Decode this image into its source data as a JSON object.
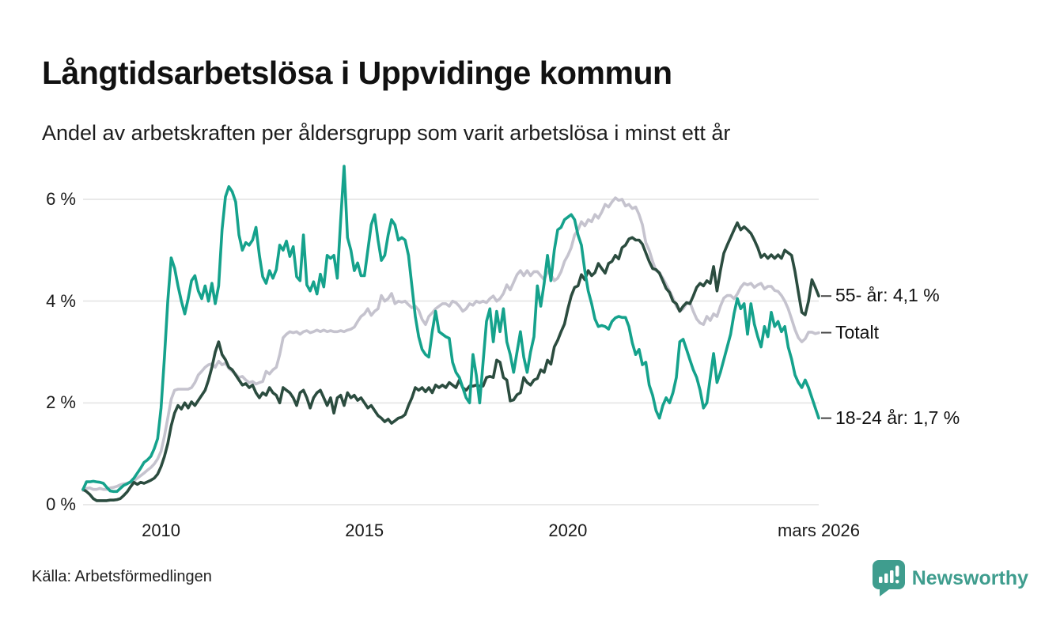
{
  "header": {
    "title": "Långtidsarbetslösa i Uppvidinge kommun",
    "subtitle": "Andel av arbetskraften per åldersgrupp som varit arbetslösa i minst ett år"
  },
  "footer": {
    "source": "Källa: Arbetsförmedlingen",
    "logo_text": "Newsworthy"
  },
  "colors": {
    "teal_line": "#15a28c",
    "dark_green_line": "#2b4c3f",
    "gray_line": "#c5c3ce",
    "grid": "#e9e9e9",
    "end_dash": "#444444",
    "logo_teal": "#3f9d8e",
    "background": "#ffffff"
  },
  "chart_data": {
    "type": "line",
    "title": "Långtidsarbetslösa i Uppvidinge kommun",
    "subtitle": "Andel av arbetskraften per åldersgrupp som varit arbetslösa i minst ett år",
    "unit": "% av arbetskraften",
    "frequency": "monthly",
    "x_start": "2008-02",
    "x_end": "2026-03",
    "ylim": [
      0,
      6.9
    ],
    "grid": "horizontal",
    "legend_position": "line-end-labels-right",
    "yticks": [
      {
        "value": 0,
        "label": "0 %"
      },
      {
        "value": 2,
        "label": "2 %"
      },
      {
        "value": 4,
        "label": "4 %"
      },
      {
        "value": 6,
        "label": "6 %"
      }
    ],
    "xticks": [
      {
        "value": 2010.0,
        "label": "2010"
      },
      {
        "value": 2015.0,
        "label": "2015"
      },
      {
        "value": 2020.0,
        "label": "2020"
      },
      {
        "value": 2026.17,
        "label": "mars 2026"
      }
    ],
    "series": [
      {
        "name": "Totalt",
        "end_label": "Totalt",
        "end_value": 3.38,
        "color": "#c5c3ce",
        "values": [
          0.28,
          0.32,
          0.33,
          0.3,
          0.3,
          0.32,
          0.3,
          0.3,
          0.33,
          0.34,
          0.36,
          0.39,
          0.41,
          0.42,
          0.44,
          0.47,
          0.52,
          0.57,
          0.62,
          0.68,
          0.73,
          0.8,
          0.9,
          1.05,
          1.35,
          1.7,
          2.07,
          2.25,
          2.27,
          2.27,
          2.27,
          2.27,
          2.3,
          2.4,
          2.55,
          2.62,
          2.7,
          2.75,
          2.77,
          2.7,
          2.82,
          2.75,
          2.78,
          2.68,
          2.62,
          2.57,
          2.5,
          2.52,
          2.45,
          2.4,
          2.42,
          2.37,
          2.4,
          2.42,
          2.62,
          2.57,
          2.65,
          2.7,
          2.95,
          3.28,
          3.35,
          3.4,
          3.38,
          3.4,
          3.35,
          3.4,
          3.42,
          3.38,
          3.4,
          3.43,
          3.4,
          3.43,
          3.4,
          3.42,
          3.4,
          3.4,
          3.42,
          3.4,
          3.43,
          3.45,
          3.49,
          3.6,
          3.7,
          3.75,
          3.85,
          3.72,
          3.8,
          3.85,
          4.11,
          4.0,
          4.05,
          4.15,
          3.95,
          4.0,
          3.98,
          4.0,
          3.93,
          3.87,
          3.9,
          3.82,
          3.64,
          3.54,
          3.7,
          3.77,
          3.85,
          3.9,
          3.95,
          3.95,
          3.9,
          4.0,
          3.97,
          3.9,
          3.8,
          3.85,
          3.95,
          3.92,
          4.0,
          3.97,
          4.0,
          3.97,
          4.05,
          4.1,
          4.0,
          4.05,
          4.15,
          4.32,
          4.22,
          4.37,
          4.52,
          4.6,
          4.5,
          4.6,
          4.5,
          4.58,
          4.58,
          4.5,
          4.42,
          4.58,
          4.52,
          4.4,
          4.45,
          4.58,
          4.78,
          4.9,
          5.05,
          5.3,
          5.4,
          5.56,
          5.48,
          5.6,
          5.56,
          5.7,
          5.63,
          5.75,
          5.9,
          5.85,
          5.95,
          6.03,
          5.98,
          6.0,
          5.87,
          5.9,
          5.82,
          5.85,
          5.7,
          5.5,
          5.15,
          5.0,
          4.78,
          4.6,
          4.56,
          4.45,
          4.33,
          4.2,
          4.06,
          3.9,
          3.8,
          3.85,
          3.95,
          3.98,
          3.8,
          3.65,
          3.57,
          3.54,
          3.7,
          3.62,
          3.75,
          3.7,
          3.9,
          4.06,
          4.11,
          4.11,
          4.05,
          4.14,
          4.27,
          4.35,
          4.32,
          4.35,
          4.27,
          4.32,
          4.35,
          4.24,
          4.29,
          4.29,
          4.21,
          4.19,
          4.11,
          4.0,
          3.85,
          3.65,
          3.44,
          3.28,
          3.2,
          3.26,
          3.39,
          3.39,
          3.36,
          3.38
        ]
      },
      {
        "name": "55- år",
        "end_label": "55- år: 4,1 %",
        "end_value": 4.1,
        "color": "#2b4c3f",
        "values": [
          0.3,
          0.26,
          0.2,
          0.12,
          0.08,
          0.08,
          0.08,
          0.08,
          0.09,
          0.09,
          0.1,
          0.12,
          0.18,
          0.25,
          0.35,
          0.44,
          0.4,
          0.44,
          0.42,
          0.45,
          0.48,
          0.52,
          0.6,
          0.75,
          0.95,
          1.2,
          1.55,
          1.8,
          1.95,
          1.88,
          2.0,
          1.9,
          2.02,
          1.95,
          2.05,
          2.15,
          2.25,
          2.45,
          2.7,
          3.0,
          3.2,
          2.95,
          2.85,
          2.7,
          2.65,
          2.55,
          2.45,
          2.35,
          2.38,
          2.3,
          2.35,
          2.2,
          2.1,
          2.2,
          2.15,
          2.3,
          2.2,
          2.15,
          2.0,
          2.3,
          2.25,
          2.2,
          2.1,
          1.95,
          2.2,
          2.25,
          2.1,
          1.9,
          2.1,
          2.2,
          2.25,
          2.1,
          1.95,
          2.1,
          1.8,
          2.1,
          2.15,
          1.95,
          2.2,
          2.1,
          2.15,
          2.05,
          2.1,
          2.0,
          1.9,
          1.95,
          1.85,
          1.75,
          1.7,
          1.63,
          1.68,
          1.6,
          1.65,
          1.7,
          1.72,
          1.77,
          1.95,
          2.1,
          2.3,
          2.25,
          2.3,
          2.22,
          2.3,
          2.2,
          2.35,
          2.3,
          2.35,
          2.3,
          2.4,
          2.35,
          2.3,
          2.45,
          2.3,
          2.25,
          2.33,
          2.33,
          2.35,
          2.33,
          2.33,
          2.5,
          2.52,
          2.5,
          2.84,
          2.8,
          2.5,
          2.45,
          2.04,
          2.06,
          2.16,
          2.2,
          2.5,
          2.4,
          2.35,
          2.45,
          2.48,
          2.65,
          2.6,
          2.84,
          2.76,
          3.1,
          3.23,
          3.4,
          3.55,
          3.85,
          4.1,
          4.27,
          4.3,
          4.52,
          4.42,
          4.6,
          4.5,
          4.56,
          4.74,
          4.64,
          4.55,
          4.74,
          4.78,
          4.9,
          4.83,
          5.05,
          5.1,
          5.22,
          5.25,
          5.2,
          5.2,
          5.12,
          4.95,
          4.78,
          4.64,
          4.62,
          4.55,
          4.4,
          4.25,
          4.17,
          4.0,
          3.95,
          3.8,
          3.9,
          3.97,
          3.95,
          4.1,
          4.27,
          4.35,
          4.3,
          4.4,
          4.35,
          4.68,
          4.2,
          4.6,
          4.94,
          5.1,
          5.25,
          5.4,
          5.54,
          5.4,
          5.46,
          5.4,
          5.33,
          5.2,
          5.05,
          4.86,
          4.92,
          4.84,
          4.91,
          4.84,
          4.91,
          4.84,
          5.0,
          4.95,
          4.9,
          4.58,
          4.17,
          3.78,
          3.73,
          4.0,
          4.42,
          4.27,
          4.1
        ]
      },
      {
        "name": "18-24 år",
        "end_label": "18-24 år: 1,7 %",
        "end_value": 1.7,
        "color": "#15a28c",
        "values": [
          0.3,
          0.45,
          0.45,
          0.46,
          0.45,
          0.44,
          0.42,
          0.34,
          0.27,
          0.26,
          0.26,
          0.32,
          0.38,
          0.41,
          0.45,
          0.52,
          0.62,
          0.72,
          0.83,
          0.88,
          0.95,
          1.1,
          1.3,
          1.9,
          2.9,
          4.0,
          4.85,
          4.65,
          4.3,
          4.0,
          3.75,
          4.05,
          4.4,
          4.5,
          4.2,
          4.05,
          4.3,
          4.0,
          4.35,
          3.95,
          4.3,
          5.4,
          6.05,
          6.25,
          6.15,
          5.95,
          5.3,
          5.0,
          5.15,
          5.1,
          5.2,
          5.45,
          4.9,
          4.48,
          4.35,
          4.6,
          4.45,
          4.62,
          5.1,
          5.0,
          5.18,
          4.88,
          5.07,
          4.48,
          4.4,
          5.3,
          4.32,
          4.2,
          4.38,
          4.14,
          4.53,
          4.28,
          4.9,
          4.84,
          4.9,
          4.45,
          5.6,
          6.65,
          5.25,
          5.0,
          4.6,
          4.75,
          4.5,
          4.5,
          5.0,
          5.5,
          5.7,
          5.2,
          4.8,
          4.9,
          5.3,
          5.6,
          5.5,
          5.2,
          5.25,
          5.2,
          4.9,
          4.3,
          3.7,
          3.3,
          3.05,
          2.95,
          2.9,
          3.4,
          3.8,
          3.4,
          3.35,
          3.3,
          3.27,
          2.8,
          2.6,
          2.5,
          2.3,
          2.1,
          2.0,
          2.95,
          2.55,
          2.0,
          2.8,
          3.6,
          3.85,
          3.2,
          3.8,
          3.4,
          3.85,
          3.2,
          2.95,
          2.6,
          3.0,
          3.4,
          2.9,
          2.6,
          3.0,
          3.3,
          4.3,
          3.9,
          4.35,
          4.9,
          4.4,
          5.0,
          5.4,
          5.45,
          5.6,
          5.65,
          5.7,
          5.6,
          5.3,
          5.1,
          4.6,
          4.2,
          3.95,
          3.65,
          3.5,
          3.52,
          3.5,
          3.45,
          3.6,
          3.67,
          3.7,
          3.68,
          3.68,
          3.5,
          3.18,
          2.95,
          3.05,
          2.75,
          2.8,
          2.35,
          2.15,
          1.85,
          1.7,
          1.95,
          2.1,
          2.0,
          2.2,
          2.5,
          3.2,
          3.25,
          3.05,
          2.85,
          2.65,
          2.5,
          2.25,
          1.9,
          2.0,
          2.5,
          2.97,
          2.4,
          2.6,
          2.85,
          3.1,
          3.35,
          3.75,
          4.05,
          3.85,
          3.95,
          3.35,
          3.95,
          3.55,
          3.3,
          3.1,
          3.5,
          3.3,
          3.78,
          3.5,
          3.6,
          3.4,
          3.5,
          3.1,
          2.86,
          2.55,
          2.4,
          2.3,
          2.45,
          2.3,
          2.1,
          1.9,
          1.7
        ]
      }
    ]
  }
}
